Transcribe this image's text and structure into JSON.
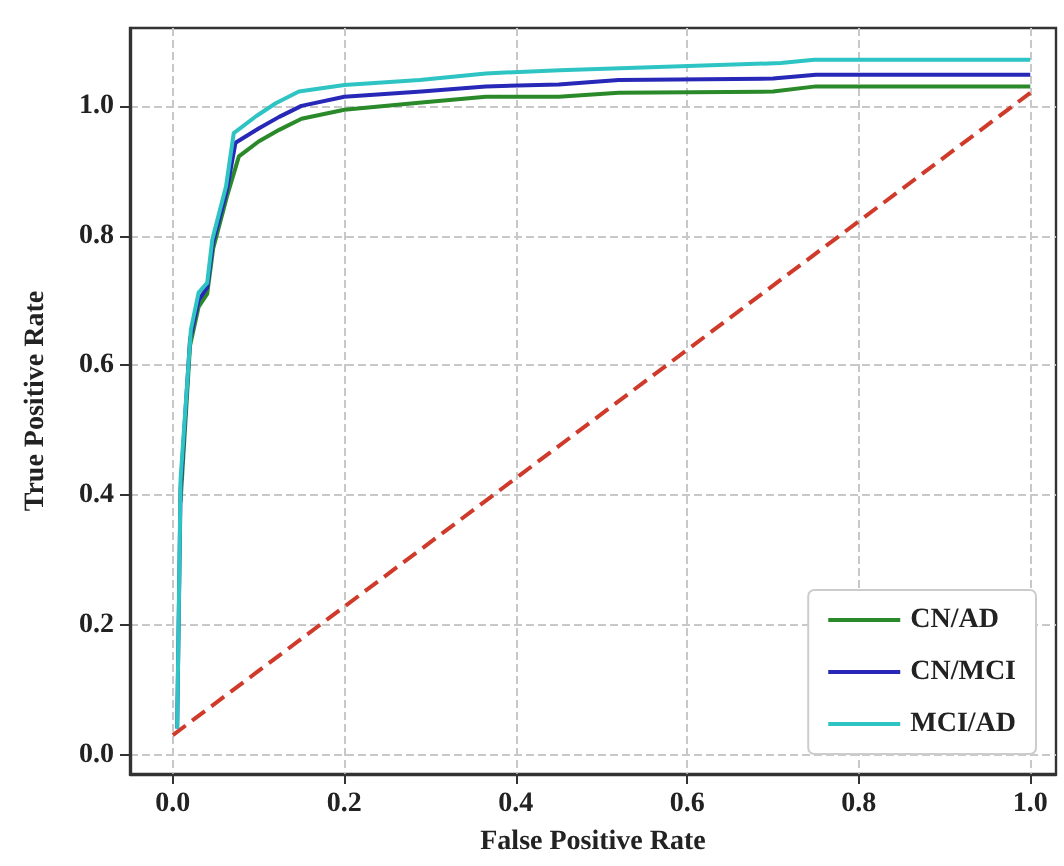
{
  "chart_data": {
    "type": "line",
    "xlabel": "False Positive Rate",
    "ylabel": "True Positive Rate",
    "xlim": [
      -0.05,
      1.03
    ],
    "ylim": [
      -0.03,
      1.12
    ],
    "xticks": [
      {
        "value": 0,
        "label": "0.0"
      },
      {
        "value": 0.2,
        "label": "0.2"
      },
      {
        "value": 0.4,
        "label": "0.4"
      },
      {
        "value": 0.6,
        "label": "0.6"
      },
      {
        "value": 0.8,
        "label": "0.8"
      },
      {
        "value": 1,
        "label": "1.0"
      }
    ],
    "yticks": [
      {
        "value": 0,
        "label": "0.0"
      },
      {
        "value": 0.2,
        "label": "0.2"
      },
      {
        "value": 0.4,
        "label": "0.4"
      },
      {
        "value": 0.6,
        "label": "0.6"
      },
      {
        "value": 0.8,
        "label": "0.8"
      },
      {
        "value": 1,
        "label": "1.0"
      }
    ],
    "grid": true,
    "legend": "bottom right",
    "marker": "none",
    "series": [
      {
        "name": "CN/AD",
        "color": "#2a8a2a",
        "x": [
          0.009,
          0.02,
          0.03,
          0.04,
          0.047,
          0.063,
          0.077,
          0.1,
          0.124,
          0.15,
          0.2,
          0.29,
          0.365,
          0.45,
          0.52,
          0.7,
          0.75,
          1.0
        ],
        "values": [
          0.39,
          0.63,
          0.69,
          0.71,
          0.78,
          0.86,
          0.922,
          0.945,
          0.963,
          0.98,
          0.994,
          1.005,
          1.014,
          1.014,
          1.02,
          1.022,
          1.03,
          1.03
        ]
      },
      {
        "name": "CN/MCI",
        "color": "#2828b8",
        "x": [
          0.005,
          0.009,
          0.02,
          0.03,
          0.04,
          0.047,
          0.063,
          0.073,
          0.1,
          0.124,
          0.15,
          0.2,
          0.29,
          0.365,
          0.45,
          0.52,
          0.7,
          0.75,
          1.0
        ],
        "values": [
          0.04,
          0.41,
          0.64,
          0.7,
          0.72,
          0.79,
          0.87,
          0.943,
          0.965,
          0.983,
          1.0,
          1.014,
          1.022,
          1.03,
          1.033,
          1.04,
          1.042,
          1.048,
          1.048
        ]
      },
      {
        "name": "MCI/AD",
        "color": "#2ec4c4",
        "x": [
          0.005,
          0.009,
          0.021,
          0.03,
          0.04,
          0.046,
          0.062,
          0.071,
          0.097,
          0.12,
          0.147,
          0.2,
          0.288,
          0.365,
          0.451,
          0.709,
          0.748,
          1.0
        ],
        "values": [
          0.04,
          0.425,
          0.655,
          0.712,
          0.727,
          0.794,
          0.876,
          0.958,
          0.984,
          1.004,
          1.022,
          1.032,
          1.04,
          1.05,
          1.055,
          1.066,
          1.071,
          1.071
        ]
      },
      {
        "color": "#d03a2a",
        "line_style": "dashed",
        "x": [
          0,
          1
        ],
        "values": [
          0.03,
          1.02
        ]
      }
    ]
  }
}
